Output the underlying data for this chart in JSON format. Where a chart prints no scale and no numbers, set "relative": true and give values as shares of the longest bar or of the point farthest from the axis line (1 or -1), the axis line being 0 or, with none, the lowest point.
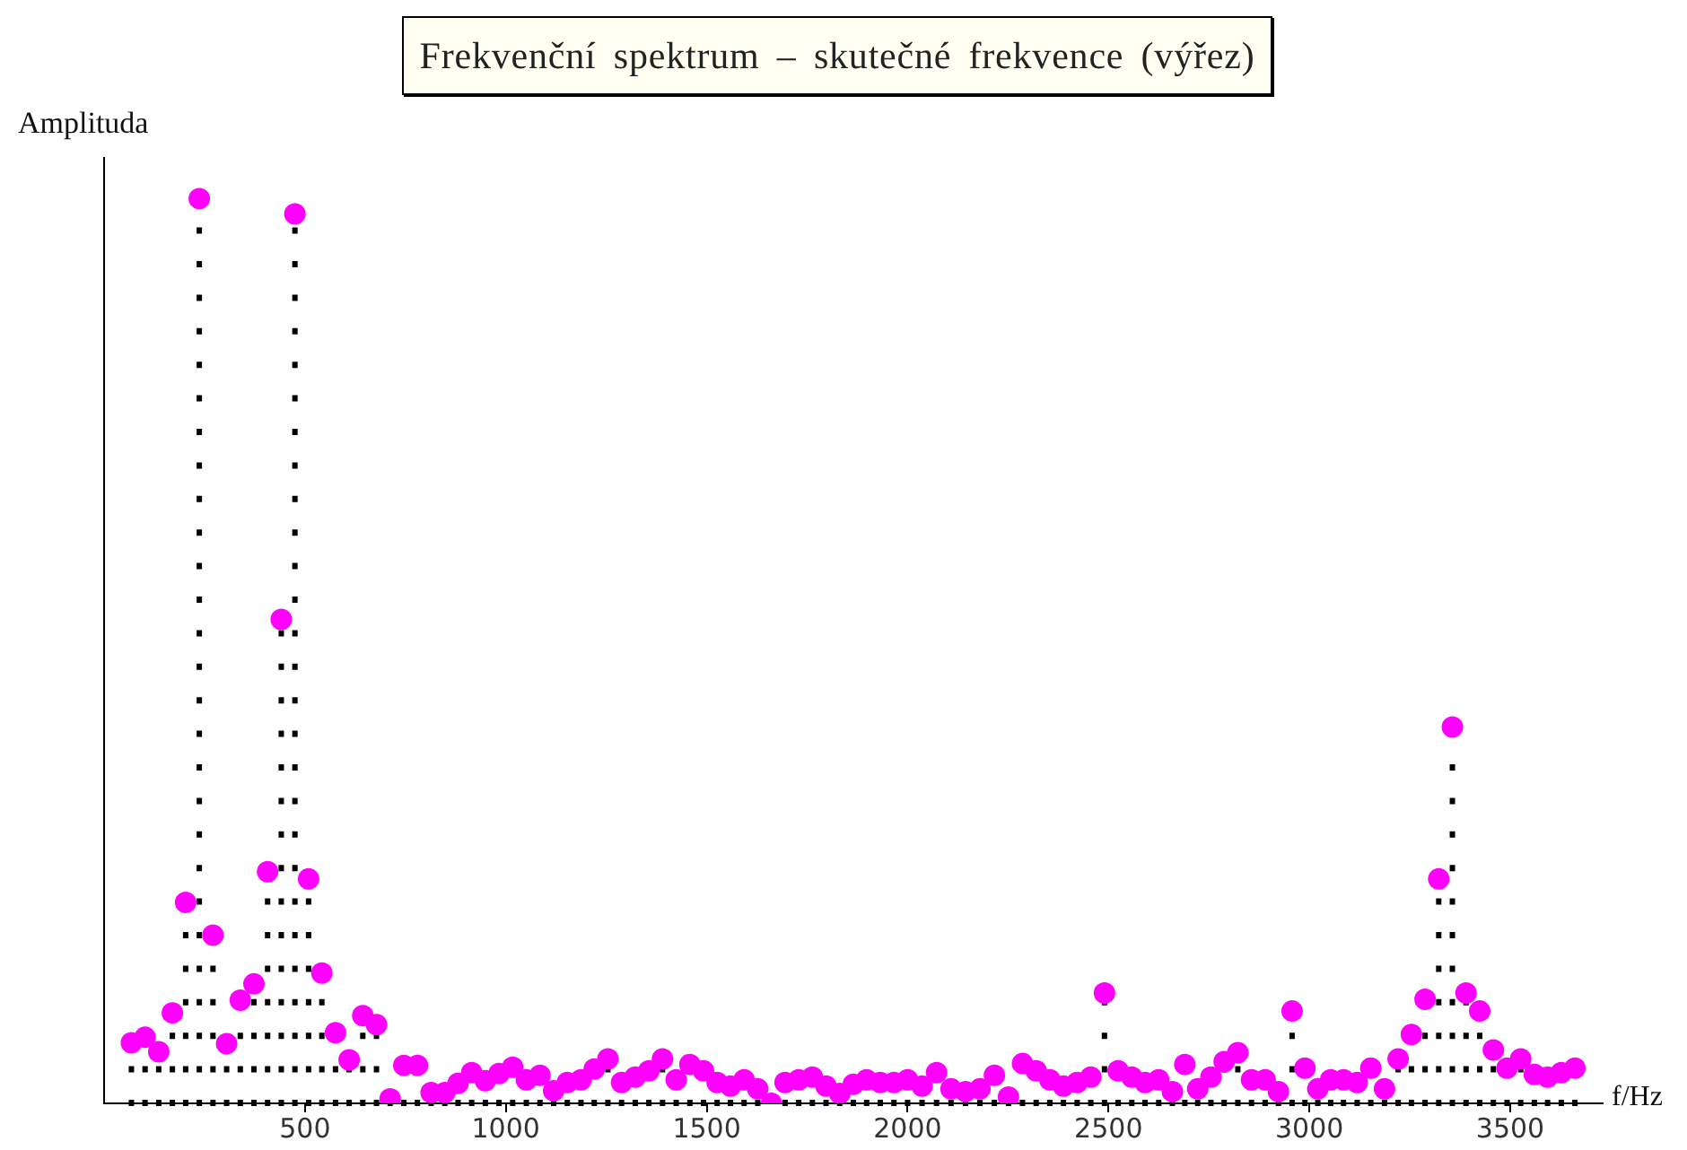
{
  "chart_data": {
    "type": "lollipop",
    "title": "Frekvenční spektrum – skutečné frekvence (výřez)",
    "xlabel": "f/Hz",
    "ylabel": "Amplituda",
    "x": [
      68,
      102,
      136,
      170,
      203,
      237,
      271,
      305,
      339,
      373,
      407,
      441,
      475,
      509,
      542,
      576,
      610,
      644,
      678,
      712,
      746,
      780,
      814,
      848,
      881,
      915,
      949,
      983,
      1017,
      1051,
      1085,
      1119,
      1153,
      1187,
      1220,
      1254,
      1288,
      1322,
      1356,
      1390,
      1424,
      1458,
      1492,
      1526,
      1559,
      1593,
      1627,
      1661,
      1695,
      1729,
      1763,
      1797,
      1831,
      1865,
      1898,
      1932,
      1966,
      2000,
      2036,
      2072,
      2108,
      2144,
      2180,
      2216,
      2251,
      2286,
      2320,
      2354,
      2388,
      2422,
      2456,
      2490,
      2524,
      2558,
      2591,
      2625,
      2659,
      2690,
      2722,
      2755,
      2788,
      2822,
      2856,
      2890,
      2923,
      2957,
      2989,
      3021,
      3053,
      3085,
      3119,
      3153,
      3187,
      3221,
      3254,
      3288,
      3322,
      3356,
      3390,
      3424,
      3458,
      3492,
      3526,
      3560,
      3593,
      3627,
      3661
    ],
    "values": [
      0.067,
      0.073,
      0.057,
      0.1,
      0.222,
      1,
      0.186,
      0.066,
      0.114,
      0.132,
      0.256,
      0.535,
      0.983,
      0.248,
      0.144,
      0.078,
      0.048,
      0.097,
      0.087,
      0.005,
      0.042,
      0.042,
      0.012,
      0.012,
      0.022,
      0.034,
      0.025,
      0.033,
      0.04,
      0.026,
      0.031,
      0.014,
      0.023,
      0.026,
      0.038,
      0.049,
      0.023,
      0.029,
      0.036,
      0.049,
      0.026,
      0.043,
      0.036,
      0.023,
      0.019,
      0.026,
      0.016,
      0,
      0.023,
      0.026,
      0.029,
      0.019,
      0.011,
      0.021,
      0.026,
      0.023,
      0.023,
      0.026,
      0.019,
      0.034,
      0.016,
      0.013,
      0.016,
      0.031,
      0.007,
      0.044,
      0.036,
      0.026,
      0.019,
      0.023,
      0.029,
      0.122,
      0.036,
      0.029,
      0.023,
      0.026,
      0.013,
      0.043,
      0.016,
      0.029,
      0.046,
      0.056,
      0.026,
      0.026,
      0.013,
      0.102,
      0.039,
      0.016,
      0.026,
      0.026,
      0.023,
      0.039,
      0.016,
      0.049,
      0.076,
      0.115,
      0.248,
      0.416,
      0.122,
      0.102,
      0.059,
      0.039,
      0.049,
      0.032,
      0.029,
      0.034,
      0.039
    ],
    "color": "#ff00ff",
    "relative": true,
    "xlim": [
      0,
      3730
    ],
    "xticks": [
      500,
      1000,
      1500,
      2000,
      2500,
      3000,
      3500
    ],
    "marker": "circle",
    "line_style": "dotted"
  }
}
